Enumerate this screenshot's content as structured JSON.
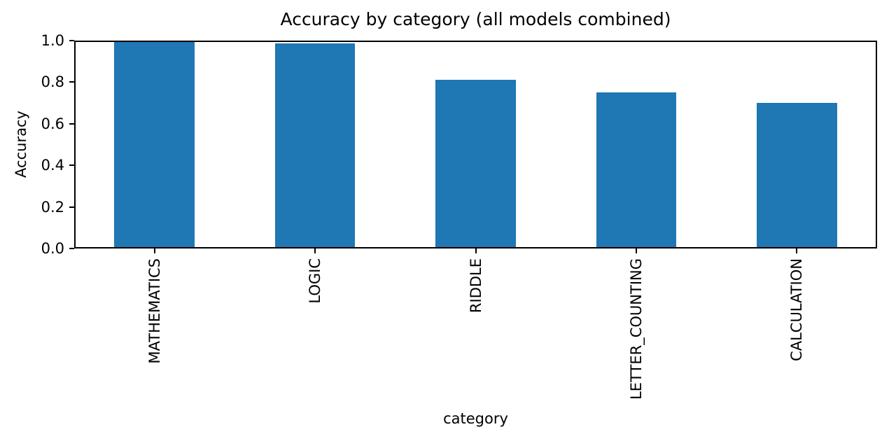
{
  "chart_data": {
    "type": "bar",
    "title": "Accuracy by category (all models combined)",
    "xlabel": "category",
    "ylabel": "Accuracy",
    "categories": [
      "MATHEMATICS",
      "LOGIC",
      "RIDDLE",
      "LETTER_COUNTING",
      "CALCULATION"
    ],
    "values": [
      1.0,
      0.985,
      0.81,
      0.75,
      0.7
    ],
    "ylim": [
      0.0,
      1.0
    ],
    "yticks": [
      0.0,
      0.2,
      0.4,
      0.6,
      0.8,
      1.0
    ],
    "bar_color": "#1f77b4",
    "x_tick_rotation": 90,
    "grid": false,
    "legend": false
  }
}
